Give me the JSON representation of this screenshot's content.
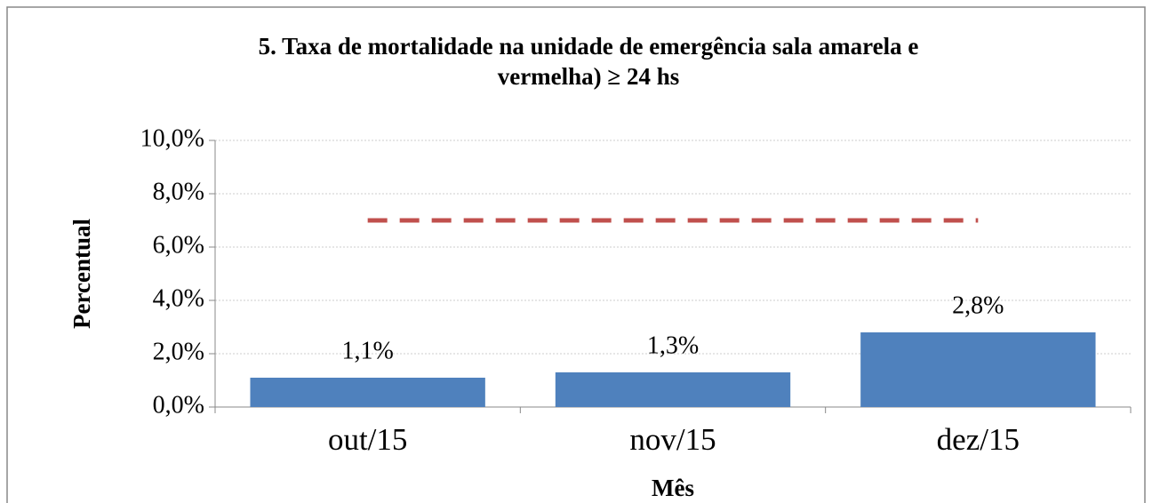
{
  "chart_data": {
    "type": "bar",
    "title": [
      "5. Taxa de mortalidade na unidade de emergência sala amarela e",
      "vermelha) ≥ 24 hs"
    ],
    "xlabel": "Mês",
    "ylabel": "Percentual",
    "categories": [
      "out/15",
      "nov/15",
      "dez/15"
    ],
    "series": [
      {
        "values": [
          1.1,
          1.3,
          2.8
        ],
        "value_labels": [
          "1,1%",
          "1,3%",
          "2,8%"
        ],
        "color": "#4f81bd"
      },
      {
        "type": "line",
        "values": [
          7,
          7,
          7
        ],
        "color": "#c0504d",
        "dashed": true
      }
    ],
    "ylim": [
      0,
      10
    ],
    "yticks": [
      {
        "value": 0,
        "label": "0,0%"
      },
      {
        "value": 2,
        "label": "2,0%"
      },
      {
        "value": 4,
        "label": "4,0%"
      },
      {
        "value": 6,
        "label": "6,0%"
      },
      {
        "value": 8,
        "label": "8,0%"
      },
      {
        "value": 10,
        "label": "10,0%"
      }
    ],
    "grid": true
  }
}
